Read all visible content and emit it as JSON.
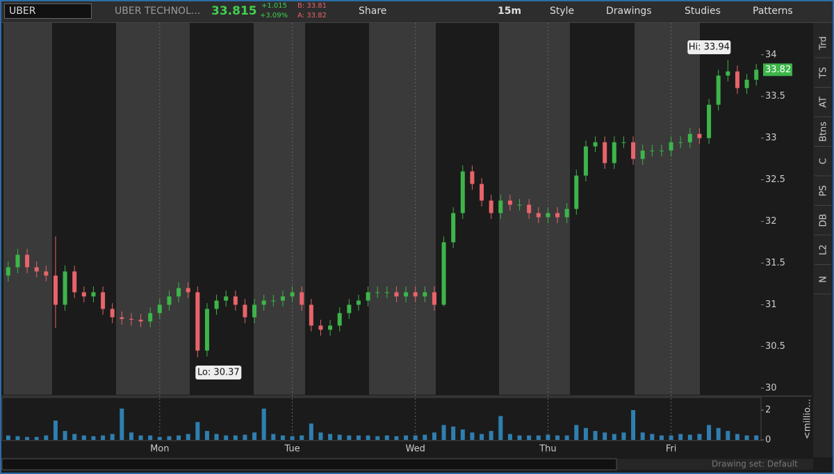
{
  "toolbar": {
    "symbol": "UBER",
    "company": "UBER TECHNOL...",
    "last": "33.815",
    "change": "+1.015",
    "change_pct": "+3.09%",
    "bid": "B: 33.81",
    "ask": "A: 33.82",
    "buttons": [
      "Share",
      "15m",
      "Style",
      "Drawings",
      "Studies",
      "Patterns"
    ]
  },
  "side_tabs": [
    "Trd",
    "TS",
    "AT",
    "Btns",
    "C",
    "PS",
    "DB",
    "L2",
    "N"
  ],
  "chart_data": {
    "type": "candlestick",
    "categories": [
      null,
      null,
      null,
      null,
      null,
      null,
      null,
      null,
      null,
      null,
      null,
      null,
      null,
      null,
      null,
      null,
      "Mon",
      null,
      null,
      null,
      null,
      null,
      null,
      null,
      null,
      null,
      null,
      null,
      null,
      null,
      "Tue",
      null,
      null,
      null,
      null,
      null,
      null,
      null,
      null,
      null,
      null,
      null,
      null,
      "Wed",
      null,
      null,
      null,
      null,
      null,
      null,
      null,
      null,
      null,
      null,
      null,
      null,
      null,
      "Thu",
      null,
      null,
      null,
      null,
      null,
      null,
      null,
      null,
      null,
      null,
      null,
      null,
      "Fri",
      null,
      null,
      null,
      null,
      null,
      null,
      null,
      null,
      null
    ],
    "open": [
      31.35,
      31.45,
      31.6,
      31.45,
      31.4,
      31.35,
      31.0,
      31.4,
      31.15,
      31.1,
      31.15,
      30.95,
      30.85,
      30.83,
      30.82,
      30.8,
      30.9,
      31.0,
      31.1,
      31.2,
      31.15,
      30.45,
      30.95,
      31.05,
      31.1,
      31.0,
      30.85,
      31.0,
      31.05,
      31.05,
      31.1,
      31.15,
      31.0,
      30.75,
      30.7,
      30.75,
      30.9,
      31.0,
      31.05,
      31.15,
      31.15,
      31.15,
      31.1,
      31.15,
      31.1,
      31.15,
      31.0,
      31.75,
      32.1,
      32.6,
      32.45,
      32.25,
      32.1,
      32.25,
      32.2,
      32.2,
      32.1,
      32.05,
      32.1,
      32.05,
      32.15,
      32.55,
      32.9,
      32.95,
      32.7,
      32.95,
      32.95,
      32.75,
      32.85,
      32.85,
      32.85,
      32.95,
      32.95,
      33.05,
      33.0,
      33.4,
      33.75,
      33.8,
      33.6,
      33.7
    ],
    "high": [
      31.52,
      31.67,
      31.67,
      31.52,
      31.47,
      31.82,
      31.47,
      31.47,
      31.22,
      31.22,
      31.22,
      31.02,
      30.92,
      30.9,
      30.89,
      30.97,
      31.07,
      31.17,
      31.27,
      31.27,
      31.22,
      31.02,
      31.12,
      31.17,
      31.17,
      31.07,
      31.07,
      31.12,
      31.12,
      31.17,
      31.22,
      31.22,
      31.07,
      30.82,
      30.82,
      30.97,
      31.07,
      31.12,
      31.22,
      31.22,
      31.22,
      31.22,
      31.22,
      31.22,
      31.22,
      31.22,
      31.82,
      32.17,
      32.67,
      32.67,
      32.52,
      32.32,
      32.32,
      32.32,
      32.27,
      32.27,
      32.17,
      32.17,
      32.17,
      32.22,
      32.62,
      32.97,
      33.02,
      33.02,
      33.02,
      33.02,
      33.02,
      32.92,
      32.92,
      32.92,
      33.02,
      33.02,
      33.12,
      33.12,
      33.47,
      33.82,
      33.94,
      33.87,
      33.77,
      33.89
    ],
    "low": [
      31.28,
      31.38,
      31.38,
      31.33,
      31.28,
      30.72,
      30.93,
      31.08,
      31.03,
      31.03,
      30.88,
      30.78,
      30.76,
      30.75,
      30.73,
      30.73,
      30.83,
      30.93,
      31.03,
      31.08,
      30.37,
      30.38,
      30.88,
      30.98,
      30.93,
      30.78,
      30.78,
      30.93,
      30.98,
      30.98,
      31.03,
      30.93,
      30.68,
      30.63,
      30.63,
      30.68,
      30.83,
      30.93,
      30.98,
      31.08,
      31.08,
      31.03,
      31.03,
      31.03,
      31.03,
      30.93,
      30.98,
      31.68,
      32.03,
      32.38,
      32.18,
      32.03,
      32.03,
      32.13,
      32.13,
      32.03,
      31.98,
      31.98,
      31.98,
      31.98,
      32.08,
      32.48,
      32.83,
      32.63,
      32.63,
      32.88,
      32.68,
      32.68,
      32.78,
      32.78,
      32.78,
      32.88,
      32.88,
      32.93,
      32.93,
      33.33,
      33.68,
      33.53,
      33.53,
      33.63
    ],
    "close": [
      31.45,
      31.6,
      31.45,
      31.4,
      31.35,
      31.0,
      31.4,
      31.15,
      31.1,
      31.15,
      30.95,
      30.85,
      30.83,
      30.82,
      30.8,
      30.9,
      31.0,
      31.1,
      31.2,
      31.15,
      30.45,
      30.95,
      31.05,
      31.1,
      31.0,
      30.85,
      31.0,
      31.05,
      31.05,
      31.1,
      31.15,
      31.0,
      30.75,
      30.7,
      30.75,
      30.9,
      31.0,
      31.05,
      31.15,
      31.15,
      31.15,
      31.1,
      31.15,
      31.1,
      31.15,
      31.0,
      31.75,
      32.1,
      32.6,
      32.45,
      32.25,
      32.1,
      32.25,
      32.2,
      32.2,
      32.1,
      32.05,
      32.1,
      32.05,
      32.15,
      32.55,
      32.9,
      32.95,
      32.7,
      32.95,
      32.95,
      32.75,
      32.85,
      32.85,
      32.85,
      32.95,
      32.95,
      33.05,
      33.0,
      33.4,
      33.75,
      33.8,
      33.6,
      33.7,
      33.82
    ],
    "up_color": "#3db54a",
    "down_color": "#e8646a",
    "ylim": [
      29.92,
      34.39
    ],
    "yticks": [
      30,
      30.5,
      31,
      31.5,
      32,
      32.5,
      33,
      33.5,
      34
    ],
    "high_label": "Hi: 33.94",
    "low_label": "Lo: 30.37",
    "volume": {
      "values": [
        0.3,
        0.25,
        0.2,
        0.2,
        0.3,
        1.3,
        0.6,
        0.4,
        0.3,
        0.25,
        0.3,
        0.4,
        2.1,
        0.5,
        0.3,
        0.3,
        0.2,
        0.25,
        0.3,
        0.4,
        1.2,
        0.6,
        0.4,
        0.3,
        0.3,
        0.35,
        0.5,
        2.1,
        0.4,
        0.3,
        0.25,
        0.3,
        1.1,
        0.5,
        0.4,
        0.35,
        0.3,
        0.3,
        0.3,
        0.25,
        0.3,
        0.25,
        0.3,
        0.3,
        0.35,
        0.5,
        1.0,
        0.9,
        0.7,
        0.5,
        0.4,
        0.6,
        1.6,
        0.4,
        0.3,
        0.3,
        0.3,
        0.35,
        0.3,
        0.3,
        1.0,
        0.8,
        0.6,
        0.5,
        0.4,
        0.5,
        2.0,
        0.5,
        0.4,
        0.3,
        0.3,
        0.4,
        0.35,
        0.4,
        1.0,
        0.8,
        0.6,
        0.4,
        0.3,
        0.3
      ],
      "color": "#2f7fb0",
      "ylim": [
        0,
        2.84
      ],
      "yticks": [
        0,
        2
      ],
      "label": "<millio..."
    }
  },
  "footer": {
    "drawing_set": "Drawing set: Default"
  }
}
